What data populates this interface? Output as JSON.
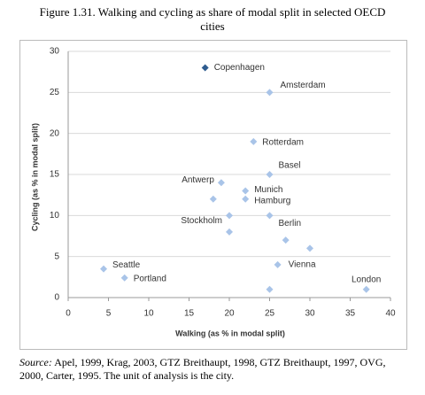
{
  "chart_data": {
    "type": "scatter",
    "title": "Figure 1.31. Walking and cycling as share of modal split in selected OECD cities",
    "xlabel": "Walking (as % in modal split)",
    "ylabel": "Cycling (as % in modal split)",
    "x": [
      17,
      25,
      23,
      25,
      19,
      18,
      22,
      22,
      20,
      25,
      20,
      27,
      30,
      26,
      4.4,
      7,
      25,
      37
    ],
    "values": [
      28,
      25,
      19,
      15,
      14,
      12,
      13,
      12,
      10,
      10,
      8,
      7,
      6,
      4,
      3.5,
      2.4,
      1,
      1
    ],
    "labels": [
      "Copenhagen",
      "Amsterdam",
      "Rotterdam",
      "Basel",
      "Antwerp",
      null,
      "Munich",
      "Hamburg",
      "Stockholm",
      "Berlin",
      null,
      null,
      null,
      "Vienna",
      "Seattle",
      "Portland",
      null,
      "London"
    ],
    "colors": [
      "#2f5c8f",
      "#a9c4e8",
      "#a9c4e8",
      "#a9c4e8",
      "#a9c4e8",
      "#a9c4e8",
      "#a9c4e8",
      "#a9c4e8",
      "#a9c4e8",
      "#a9c4e8",
      "#a9c4e8",
      "#a9c4e8",
      "#a9c4e8",
      "#a9c4e8",
      "#a9c4e8",
      "#a9c4e8",
      "#a9c4e8",
      "#a9c4e8"
    ],
    "xlim": [
      0,
      40
    ],
    "xticks": [
      0,
      5,
      10,
      15,
      20,
      25,
      30,
      35,
      40
    ],
    "ylim": [
      0,
      30
    ],
    "yticks": [
      0,
      5,
      10,
      15,
      20,
      25,
      30
    ],
    "grid": true,
    "source_label": "Source:",
    "source": "Apel, 1999, Krag, 2003, GTZ Breithaupt, 1998, GTZ Breithaupt, 1997, OVG, 2000, Carter, 1995. The unit of analysis is the city."
  }
}
